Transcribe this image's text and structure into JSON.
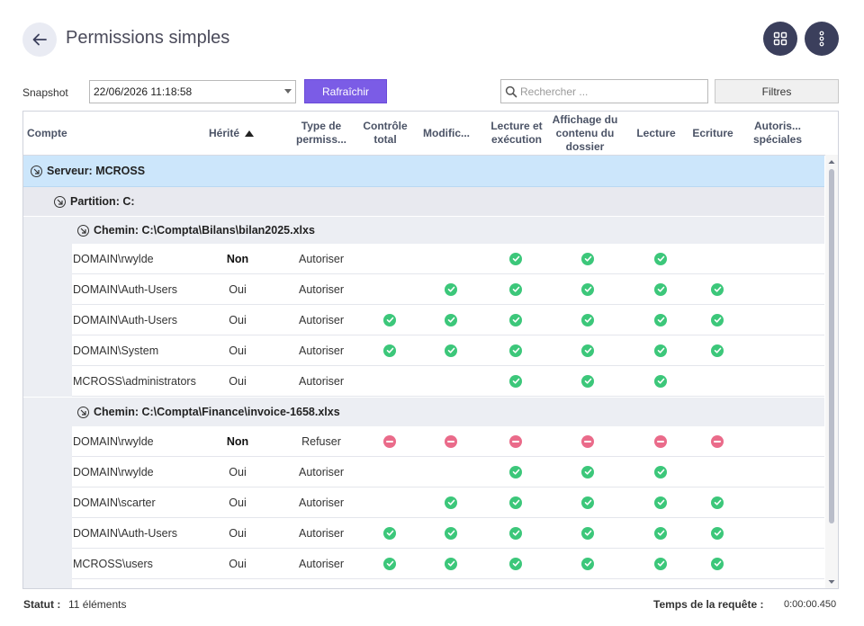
{
  "header": {
    "title": "Permissions simples"
  },
  "toolbar": {
    "snapshot_label": "Snapshot",
    "snapshot_value": "22/06/2026 11:18:58",
    "refresh_label": "Rafraîchir",
    "search_placeholder": "Rechercher ...",
    "filters_label": "Filtres"
  },
  "columns": {
    "account": "Compte",
    "inherited": "Hérité",
    "type": "Type de permiss...",
    "full_control": "Contrôle total",
    "modify": "Modific...",
    "read_execute": "Lecture et exécution",
    "list_folder": "Affichage du contenu du dossier",
    "read": "Lecture",
    "write": "Ecriture",
    "special": "Autoris... spéciales"
  },
  "groups": {
    "server": "Serveur: MCROSS",
    "partition": "Partition: C:",
    "path1": "Chemin: C:\\Compta\\Bilans\\bilan2025.xlxs",
    "path2": "Chemin: C:\\Compta\\Finance\\invoice-1658.xlxs"
  },
  "rows": [
    {
      "account": "DOMAIN\\rwylde",
      "inherited": "Non",
      "type": "Autoriser",
      "perms": [
        "",
        "",
        "allow",
        "allow",
        "allow",
        "",
        ""
      ]
    },
    {
      "account": "DOMAIN\\Auth-Users",
      "inherited": "Oui",
      "type": "Autoriser",
      "perms": [
        "",
        "allow",
        "allow",
        "allow",
        "allow",
        "allow",
        ""
      ]
    },
    {
      "account": "DOMAIN\\Auth-Users",
      "inherited": "Oui",
      "type": "Autoriser",
      "perms": [
        "allow",
        "allow",
        "allow",
        "allow",
        "allow",
        "allow",
        ""
      ]
    },
    {
      "account": "DOMAIN\\System",
      "inherited": "Oui",
      "type": "Autoriser",
      "perms": [
        "allow",
        "allow",
        "allow",
        "allow",
        "allow",
        "allow",
        ""
      ]
    },
    {
      "account": "MCROSS\\administrators",
      "inherited": "Oui",
      "type": "Autoriser",
      "perms": [
        "",
        "",
        "allow",
        "allow",
        "allow",
        "",
        ""
      ]
    },
    {
      "account": "DOMAIN\\rwylde",
      "inherited": "Non",
      "type": "Refuser",
      "perms": [
        "deny",
        "deny",
        "deny",
        "deny",
        "deny",
        "deny",
        ""
      ]
    },
    {
      "account": "DOMAIN\\rwylde",
      "inherited": "Oui",
      "type": "Autoriser",
      "perms": [
        "",
        "",
        "allow",
        "allow",
        "allow",
        "",
        ""
      ]
    },
    {
      "account": "DOMAIN\\scarter",
      "inherited": "Oui",
      "type": "Autoriser",
      "perms": [
        "",
        "allow",
        "allow",
        "allow",
        "allow",
        "allow",
        ""
      ]
    },
    {
      "account": "DOMAIN\\Auth-Users",
      "inherited": "Oui",
      "type": "Autoriser",
      "perms": [
        "allow",
        "allow",
        "allow",
        "allow",
        "allow",
        "allow",
        ""
      ]
    },
    {
      "account": "MCROSS\\users",
      "inherited": "Oui",
      "type": "Autoriser",
      "perms": [
        "allow",
        "allow",
        "allow",
        "allow",
        "allow",
        "allow",
        ""
      ]
    }
  ],
  "footer": {
    "status_label": "Statut :",
    "status_value": "11 éléments",
    "time_label": "Temps de la requête :",
    "time_value": "0:00:00.450"
  },
  "colors": {
    "accent": "#7b5ce6",
    "allow": "#3cc77a",
    "deny": "#ea6b8a",
    "server_row": "#cce6fb",
    "header_circle": "#3b3f5c"
  }
}
